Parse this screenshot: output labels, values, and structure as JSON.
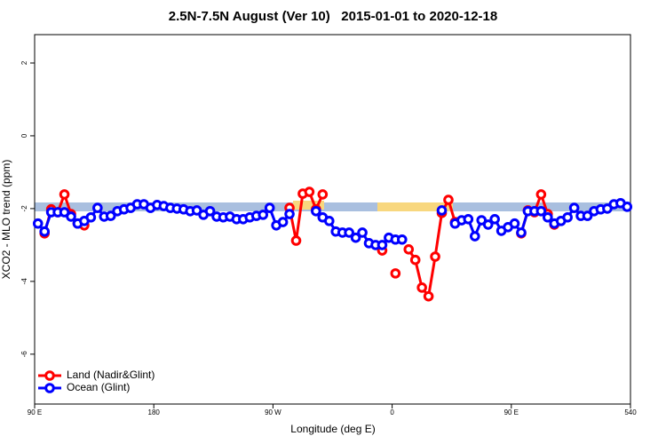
{
  "chart_data": {
    "type": "line",
    "title": "2.5N-7.5N August (Ver 10)   2015-01-01 to 2020-12-18",
    "xlabel": "Longitude (deg E)",
    "ylabel": "XCO2 - MLO trend (ppm)",
    "xlim": [
      90,
      540
    ],
    "xticks": [
      {
        "value": 90,
        "label": "90 E"
      },
      180,
      {
        "value": 270,
        "label": "90 W"
      },
      {
        "value": 360,
        "label": "0"
      },
      {
        "value": 450,
        "label": "90 E"
      },
      540
    ],
    "ylim": [
      -7.37,
      2.78
    ],
    "yticks": [
      2,
      0,
      -2,
      -4,
      -6
    ],
    "legend": "bottom-left",
    "x": [
      92.5,
      97.5,
      102.5,
      107.5,
      112.5,
      117.5,
      122.5,
      127.5,
      132.5,
      137.5,
      142.5,
      147.5,
      152.5,
      157.5,
      162.5,
      167.5,
      172.5,
      177.5,
      182.5,
      187.5,
      192.5,
      197.5,
      202.5,
      207.5,
      212.5,
      217.5,
      222.5,
      227.5,
      232.5,
      237.5,
      242.5,
      247.5,
      252.5,
      257.5,
      262.5,
      267.5,
      272.5,
      277.5,
      282.5,
      287.5,
      292.5,
      297.5,
      302.5,
      307.5,
      312.5,
      317.5,
      322.5,
      327.5,
      332.5,
      337.5,
      342.5,
      347.5,
      352.5,
      357.5,
      362.5,
      367.5,
      372.5,
      377.5,
      382.5,
      387.5,
      392.5,
      397.5,
      402.5,
      407.5,
      412.5,
      417.5,
      422.5,
      427.5,
      432.5,
      437.5,
      442.5,
      447.5,
      452.5,
      457.5,
      462.5,
      467.5,
      472.5,
      477.5,
      482.5,
      487.5,
      492.5,
      497.5,
      502.5,
      507.5,
      512.5,
      517.5,
      522.5,
      527.5,
      532.5,
      537.5
    ],
    "series": [
      {
        "name": "Land (Nadir&Glint)",
        "color": "#ff0000",
        "values": [
          null,
          -2.68,
          -2.02,
          -2.1,
          -1.61,
          -2.15,
          -2.41,
          -2.46,
          null,
          null,
          null,
          null,
          null,
          null,
          null,
          null,
          null,
          null,
          null,
          null,
          null,
          null,
          null,
          null,
          null,
          null,
          null,
          null,
          null,
          null,
          null,
          null,
          null,
          null,
          null,
          null,
          null,
          null,
          -1.98,
          -2.88,
          -1.59,
          -1.54,
          -2.02,
          -1.61,
          null,
          null,
          null,
          null,
          null,
          null,
          null,
          null,
          -3.15,
          null,
          -3.78,
          null,
          -3.12,
          -3.41,
          -4.17,
          -4.41,
          -3.32,
          -2.12,
          -1.76,
          -2.37,
          null,
          null,
          null,
          null,
          null,
          null,
          null,
          null,
          null,
          -2.68,
          -2.05,
          -2.1,
          -1.61,
          -2.15,
          -2.44,
          null,
          null,
          null,
          null,
          null,
          null,
          null,
          null,
          null,
          null,
          null
        ]
      },
      {
        "name": "Ocean (Glint)",
        "color": "#0000ff",
        "values": [
          -2.41,
          -2.63,
          -2.1,
          -2.1,
          -2.1,
          -2.22,
          -2.41,
          -2.34,
          -2.24,
          -1.98,
          -2.22,
          -2.2,
          -2.07,
          -2.02,
          -1.98,
          -1.88,
          -1.88,
          -1.98,
          -1.9,
          -1.93,
          -1.98,
          -2,
          -2.02,
          -2.07,
          -2.05,
          -2.17,
          -2.07,
          -2.22,
          -2.24,
          -2.22,
          -2.29,
          -2.29,
          -2.24,
          -2.2,
          -2.17,
          -1.98,
          -2.46,
          -2.37,
          -2.15,
          null,
          null,
          null,
          -2.07,
          -2.24,
          -2.34,
          -2.63,
          -2.66,
          -2.66,
          -2.8,
          -2.66,
          -2.95,
          -3,
          -3,
          -2.8,
          -2.85,
          -2.85,
          null,
          null,
          null,
          null,
          null,
          -2.05,
          null,
          -2.41,
          -2.32,
          -2.29,
          -2.76,
          -2.32,
          -2.44,
          -2.29,
          -2.61,
          -2.51,
          -2.41,
          -2.66,
          -2.07,
          -2.07,
          -2.07,
          -2.24,
          -2.41,
          -2.34,
          -2.24,
          -1.98,
          -2.2,
          -2.2,
          -2.07,
          -2.02,
          -2,
          -1.88,
          -1.85,
          -1.95
        ]
      }
    ]
  }
}
